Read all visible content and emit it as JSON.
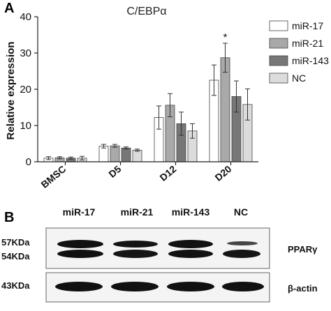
{
  "panel_a_letter": "A",
  "panel_b_letter": "B",
  "chart_data": {
    "type": "bar",
    "title": "C/EBPα",
    "xlabel": "",
    "ylabel": "Relative expression",
    "ylim": [
      0,
      40
    ],
    "yticks": [
      "0",
      "10",
      "20",
      "30",
      "40"
    ],
    "categories": [
      "BMSC",
      "D5",
      "D12",
      "D20"
    ],
    "series": [
      {
        "name": "miR-17",
        "color": "#ffffff",
        "values": [
          1.0,
          4.3,
          12.2,
          22.5
        ],
        "errors": [
          0.4,
          0.5,
          3.2,
          4.2
        ]
      },
      {
        "name": "miR-21",
        "color": "#a9a9a9",
        "values": [
          1.1,
          4.4,
          15.6,
          28.7
        ],
        "errors": [
          0.3,
          0.4,
          3.2,
          4.0
        ]
      },
      {
        "name": "miR-143",
        "color": "#777777",
        "values": [
          1.0,
          3.8,
          10.5,
          18.0
        ],
        "errors": [
          0.3,
          0.3,
          3.2,
          4.3
        ]
      },
      {
        "name": "NC",
        "color": "#dcdcdc",
        "values": [
          1.0,
          3.2,
          8.5,
          15.8
        ],
        "errors": [
          0.5,
          0.3,
          2.0,
          4.3
        ]
      }
    ],
    "annotations": [
      {
        "text": "*",
        "category": "D20",
        "series": "miR-21"
      }
    ],
    "legend_position": "top-right",
    "grid": false
  },
  "blot": {
    "lanes": [
      "miR-17",
      "miR-21",
      "miR-143",
      "NC"
    ],
    "markers": {
      "upper_a": "57KDa",
      "upper_b": "54KDa",
      "lower": "43KDa"
    },
    "proteins": {
      "upper": "PPARγ",
      "lower": "β-actin"
    }
  }
}
